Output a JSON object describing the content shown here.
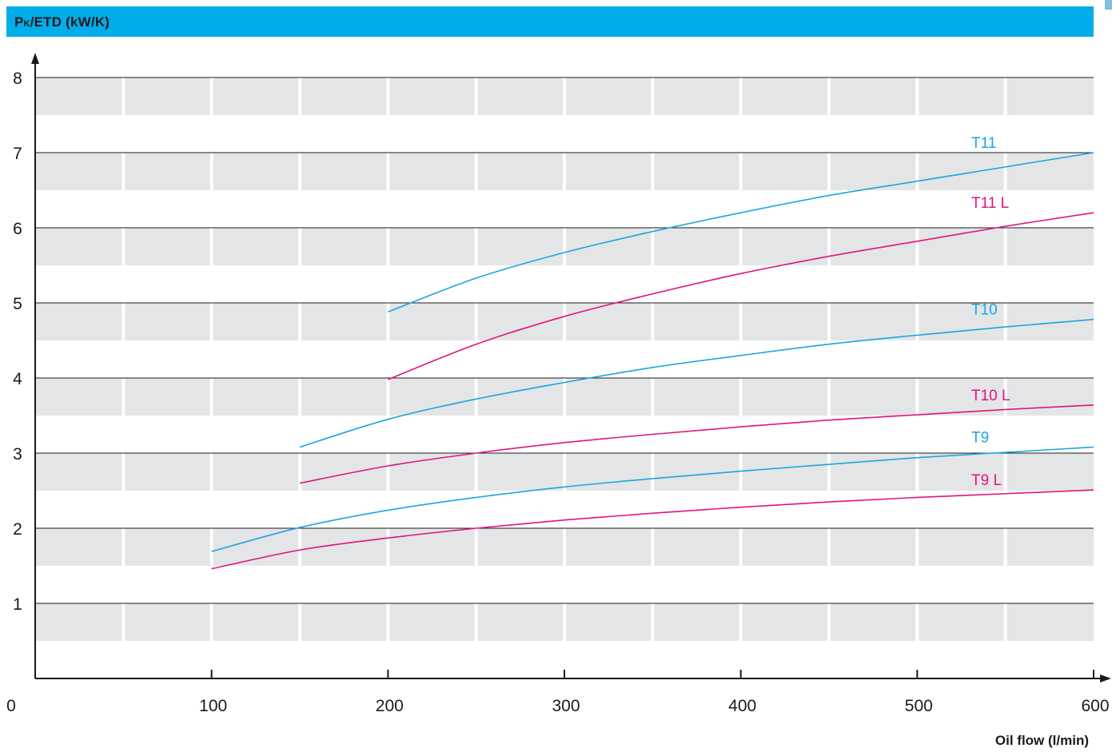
{
  "chart_data": {
    "type": "line",
    "ylabel_main": "P",
    "ylabel_sub": "K",
    "ylabel_rest": "/ETD (kW/K)",
    "xlabel": "Oil flow (l/min)",
    "xlim": [
      0,
      600
    ],
    "ylim": [
      0,
      8
    ],
    "x_ticks": [
      0,
      100,
      200,
      300,
      400,
      500,
      600
    ],
    "y_ticks": [
      1,
      2,
      3,
      4,
      5,
      6,
      7,
      8
    ],
    "grid": true,
    "series": [
      {
        "name": "T11",
        "color": "#1aa6e0",
        "x": [
          200,
          250,
          300,
          350,
          400,
          450,
          500,
          550,
          600
        ],
        "y": [
          4.88,
          5.33,
          5.67,
          5.95,
          6.2,
          6.43,
          6.62,
          6.81,
          7.0
        ]
      },
      {
        "name": "T11 L",
        "color": "#e0147e",
        "x": [
          200,
          250,
          300,
          350,
          400,
          450,
          500,
          550,
          600
        ],
        "y": [
          3.98,
          4.45,
          4.82,
          5.12,
          5.39,
          5.62,
          5.82,
          6.02,
          6.2
        ]
      },
      {
        "name": "T10",
        "color": "#1aa6e0",
        "x": [
          150,
          200,
          250,
          300,
          350,
          400,
          450,
          500,
          550,
          600
        ],
        "y": [
          3.08,
          3.45,
          3.72,
          3.94,
          4.14,
          4.3,
          4.45,
          4.57,
          4.68,
          4.78
        ]
      },
      {
        "name": "T10 L",
        "color": "#e0147e",
        "x": [
          150,
          200,
          250,
          300,
          350,
          400,
          450,
          500,
          550,
          600
        ],
        "y": [
          2.6,
          2.83,
          3.0,
          3.14,
          3.25,
          3.35,
          3.44,
          3.51,
          3.58,
          3.64
        ]
      },
      {
        "name": "T9",
        "color": "#1aa6e0",
        "x": [
          100,
          150,
          200,
          250,
          300,
          350,
          400,
          450,
          500,
          550,
          600
        ],
        "y": [
          1.69,
          2.01,
          2.24,
          2.41,
          2.55,
          2.66,
          2.76,
          2.85,
          2.94,
          3.01,
          3.08
        ]
      },
      {
        "name": "T9 L",
        "color": "#e0147e",
        "x": [
          100,
          150,
          200,
          250,
          300,
          350,
          400,
          450,
          500,
          550,
          600
        ],
        "y": [
          1.46,
          1.71,
          1.87,
          2.0,
          2.11,
          2.2,
          2.28,
          2.35,
          2.41,
          2.46,
          2.51
        ]
      }
    ]
  }
}
